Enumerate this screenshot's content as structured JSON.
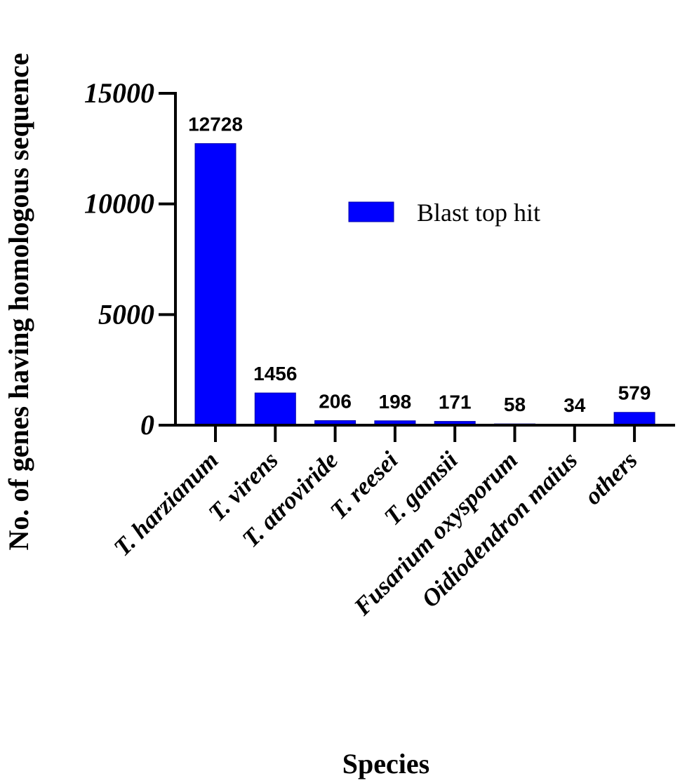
{
  "chart_data": {
    "type": "bar",
    "xlabel": "Species",
    "ylabel": "No. of genes having homologous sequence",
    "categories": [
      "T. harzianum",
      "T. virens",
      "T. atroviride",
      "T. reesei",
      "T. gamsii",
      "Fusarium oxysporum",
      "Oidiodendron maius",
      "others"
    ],
    "series": [
      {
        "name": "Blast top hit",
        "values": [
          12728,
          1456,
          206,
          198,
          171,
          58,
          34,
          579
        ],
        "color": "#0000ff"
      }
    ],
    "data_labels": [
      "12728",
      "1456",
      "206",
      "198",
      "171",
      "58",
      "34",
      "579"
    ],
    "ylim": [
      0,
      15000
    ],
    "yticks": [
      0,
      5000,
      10000,
      15000
    ],
    "ytick_labels": [
      "0",
      "5000",
      "10000",
      "15000"
    ],
    "grid": false,
    "legend_position": "top-right"
  }
}
